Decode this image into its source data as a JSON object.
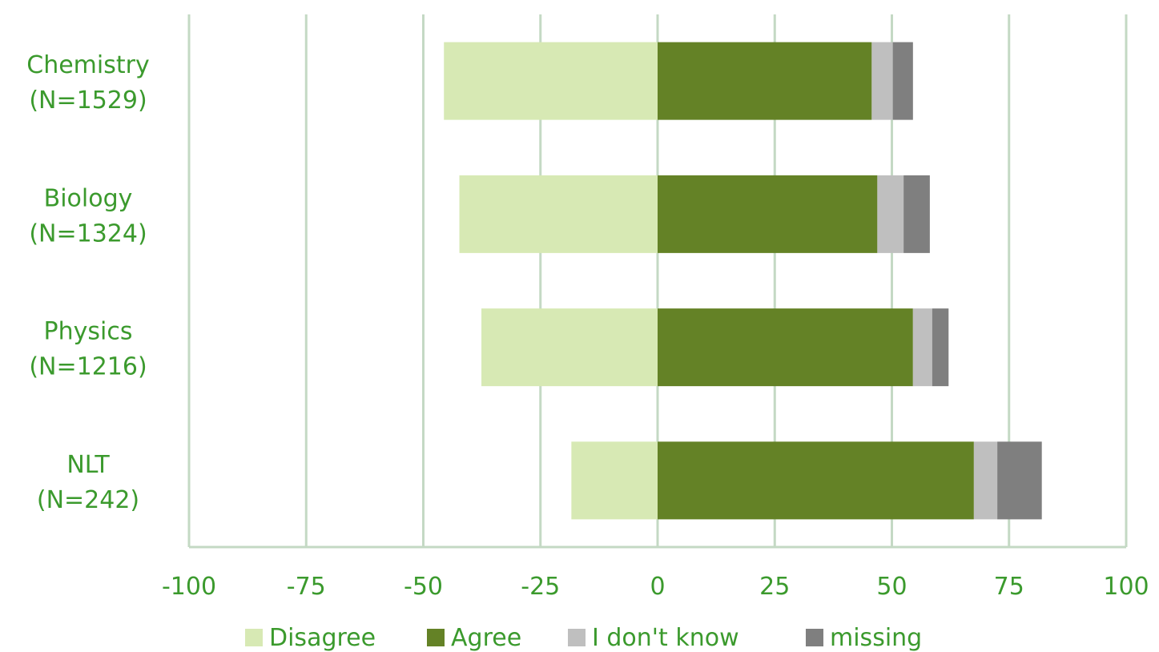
{
  "chart_data": {
    "type": "bar",
    "orientation": "horizontal",
    "stacked": true,
    "diverging": true,
    "categories": [
      [
        "Chemistry",
        "(N=1529)"
      ],
      [
        "Biology",
        "(N=1324)"
      ],
      [
        "Physics",
        "(N=1216)"
      ],
      [
        "NLT",
        "(N=242)"
      ]
    ],
    "series": [
      {
        "name": "Disagree",
        "values": [
          -45.6,
          -42.3,
          -37.6,
          -18.4
        ]
      },
      {
        "name": "Agree",
        "values": [
          45.7,
          46.9,
          54.5,
          67.5
        ]
      },
      {
        "name": "I don't know",
        "values": [
          4.5,
          5.6,
          4.1,
          5.0
        ]
      },
      {
        "name": "missing",
        "values": [
          4.3,
          5.6,
          3.5,
          9.5
        ]
      }
    ],
    "xlim": [
      -100,
      100
    ],
    "xticks": [
      "-100",
      "-75",
      "-50",
      "-25",
      "0",
      "25",
      "50",
      "75",
      "100"
    ],
    "grid": true,
    "legend_position": "bottom",
    "xlabel": "",
    "ylabel": "",
    "title": ""
  },
  "colors": {
    "Disagree": "#d7e9b4",
    "Agree": "#648226",
    "I don't know": "#bfbfbf",
    "missing": "#7f7f7f",
    "grid": "#c4d9c4",
    "text": "#3b9a2d"
  }
}
